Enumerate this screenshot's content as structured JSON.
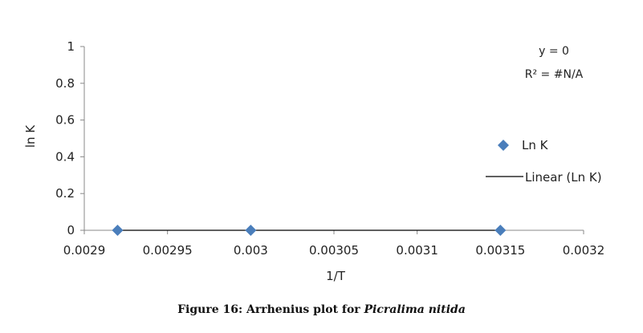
{
  "chart_data": {
    "type": "scatter",
    "title": "",
    "xlabel": "1/T",
    "ylabel": "ln K",
    "xlim": [
      0.0029,
      0.0032
    ],
    "ylim": [
      0,
      1
    ],
    "x_ticks": [
      "0.0029",
      "0.00295",
      "0.003",
      "0.00305",
      "0.0031",
      "0.00315",
      "0.0032"
    ],
    "x_tick_values": [
      0.0029,
      0.00295,
      0.003,
      0.00305,
      0.0031,
      0.00315,
      0.0032
    ],
    "y_ticks": [
      "0",
      "0.2",
      "0.4",
      "0.6",
      "0.8",
      "1"
    ],
    "y_tick_values": [
      0,
      0.2,
      0.4,
      0.6,
      0.8,
      1
    ],
    "grid": false,
    "legend_position": "right",
    "series": [
      {
        "name": "Ln K",
        "marker": "diamond",
        "color": "#4a7ebb",
        "x": [
          0.00292,
          0.003,
          0.00315
        ],
        "y": [
          0,
          0,
          0
        ]
      },
      {
        "name": "Linear (Ln K)",
        "style": "line",
        "color": "#000000",
        "x": [
          0.00292,
          0.00315
        ],
        "y": [
          0,
          0
        ]
      }
    ],
    "annotations": [
      "y = 0",
      "R² = #N/A"
    ]
  },
  "caption": {
    "prefix": "Figure 16: Arrhenius plot for ",
    "species": "Picralima nitida"
  }
}
